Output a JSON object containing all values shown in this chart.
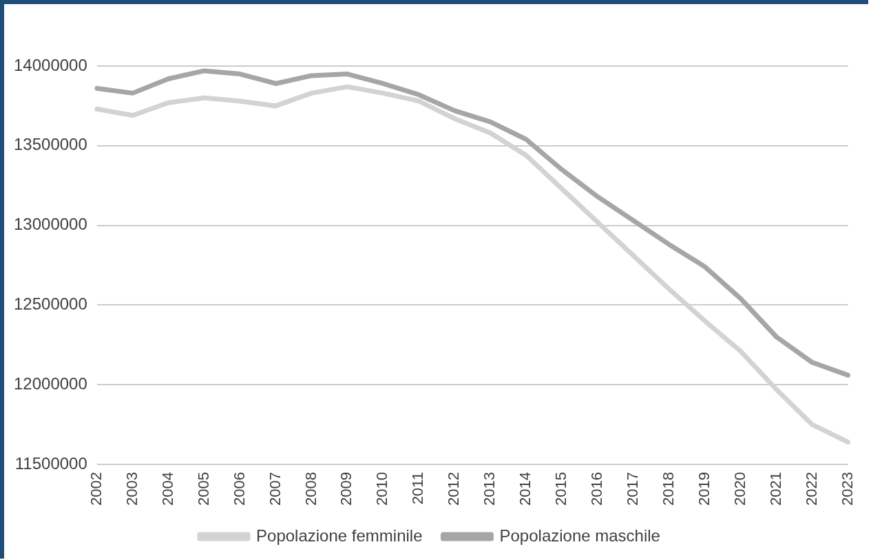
{
  "chart_data": {
    "type": "line",
    "categories": [
      "2002",
      "2003",
      "2004",
      "2005",
      "2006",
      "2007",
      "2008",
      "2009",
      "2010",
      "2011",
      "2012",
      "2013",
      "2014",
      "2015",
      "2016",
      "2017",
      "2018",
      "2019",
      "2020",
      "2021",
      "2022",
      "2023"
    ],
    "series": [
      {
        "name": "Popolazione femminile",
        "color": "#d3d3d3",
        "values": [
          13730000,
          13690000,
          13770000,
          13800000,
          13780000,
          13750000,
          13830000,
          13870000,
          13830000,
          13780000,
          13670000,
          13580000,
          13440000,
          13230000,
          13020000,
          12810000,
          12600000,
          12400000,
          12210000,
          11970000,
          11750000,
          11640000
        ]
      },
      {
        "name": "Popolazione maschile",
        "color": "#a6a6a6",
        "values": [
          13860000,
          13830000,
          13920000,
          13970000,
          13950000,
          13890000,
          13940000,
          13950000,
          13890000,
          13820000,
          13720000,
          13650000,
          13540000,
          13350000,
          13180000,
          13030000,
          12880000,
          12740000,
          12540000,
          12300000,
          12140000,
          12060000
        ]
      }
    ],
    "ylim": [
      11500000,
      14000000
    ],
    "yticks": [
      11500000,
      12000000,
      12500000,
      13000000,
      13500000,
      14000000
    ],
    "grid": "y",
    "legend": "bottom",
    "marker": "none",
    "line_style": "solid"
  }
}
